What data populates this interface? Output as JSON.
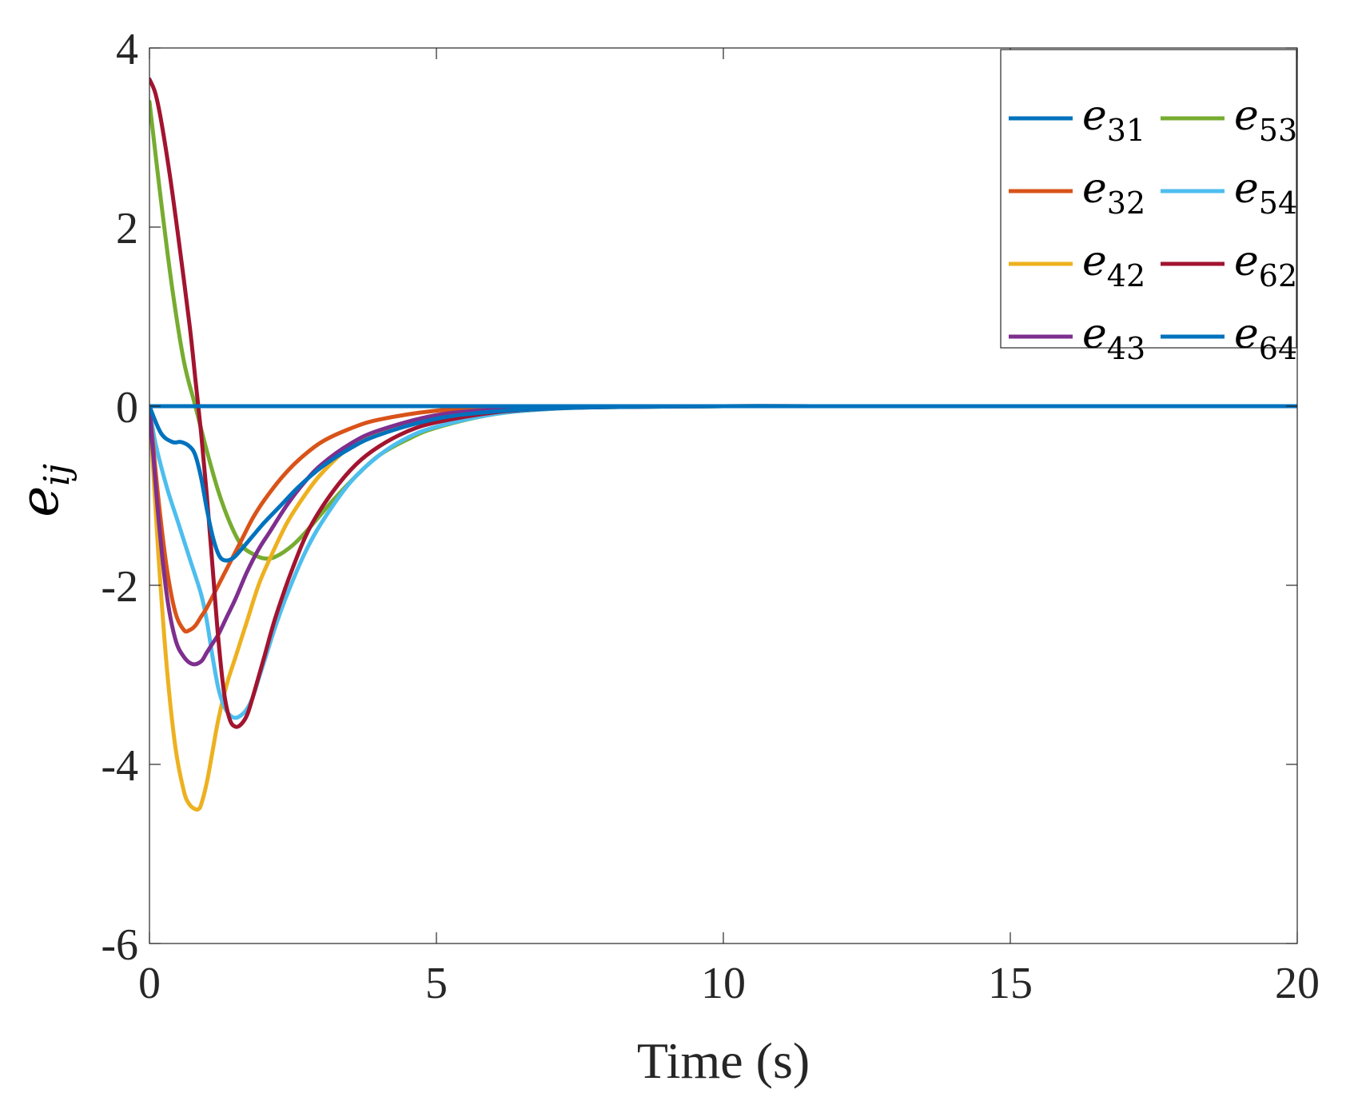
{
  "chart_data": {
    "type": "line",
    "title": "",
    "xlabel": "Time (s)",
    "ylabel": {
      "base": "e",
      "sub": "ij"
    },
    "xlim": [
      0,
      20
    ],
    "ylim": [
      -6,
      4
    ],
    "xticks": [
      0,
      5,
      10,
      15,
      20
    ],
    "xtick_labels": [
      "0",
      "5",
      "10",
      "15",
      "20"
    ],
    "yticks": [
      -6,
      -4,
      -2,
      0,
      2,
      4
    ],
    "ytick_labels": [
      "-6",
      "-4",
      "-2",
      "0",
      "2",
      "4"
    ],
    "grid": false,
    "legend_position": "top-right",
    "legend_columns": 2,
    "series": [
      {
        "name": "e31",
        "base": "e",
        "sub": "31",
        "color": "#0072BD",
        "x": [
          0,
          0.2,
          0.4,
          0.55,
          0.7,
          0.8,
          0.9,
          1.0,
          1.1,
          1.2,
          1.3,
          1.45,
          1.6,
          1.8,
          2.0,
          2.3,
          2.6,
          3.0,
          3.5,
          4.0,
          5.0,
          6.0,
          7.0,
          8.0,
          10.0,
          12.0,
          15.0,
          20.0
        ],
        "y": [
          0,
          -0.3,
          -0.4,
          -0.4,
          -0.45,
          -0.55,
          -0.8,
          -1.15,
          -1.45,
          -1.65,
          -1.72,
          -1.7,
          -1.6,
          -1.45,
          -1.3,
          -1.1,
          -0.9,
          -0.68,
          -0.47,
          -0.32,
          -0.14,
          -0.06,
          -0.025,
          -0.01,
          0,
          0,
          0,
          0
        ]
      },
      {
        "name": "e32",
        "base": "e",
        "sub": "32",
        "color": "#D95319",
        "x": [
          0,
          0.15,
          0.3,
          0.45,
          0.6,
          0.7,
          0.8,
          0.9,
          1.0,
          1.2,
          1.4,
          1.6,
          1.8,
          2.0,
          2.3,
          2.6,
          3.0,
          3.5,
          4.0,
          5.0,
          6.0,
          7.0,
          8.0,
          10.0,
          12.0,
          15.0,
          20.0
        ],
        "y": [
          0,
          -1.0,
          -1.8,
          -2.3,
          -2.5,
          -2.5,
          -2.45,
          -2.35,
          -2.25,
          -2.0,
          -1.75,
          -1.5,
          -1.25,
          -1.05,
          -0.8,
          -0.6,
          -0.4,
          -0.25,
          -0.15,
          -0.05,
          -0.02,
          -0.01,
          0,
          0,
          0,
          0,
          0
        ]
      },
      {
        "name": "e42",
        "base": "e",
        "sub": "42",
        "color": "#EDB120",
        "x": [
          0,
          0.15,
          0.3,
          0.45,
          0.6,
          0.7,
          0.8,
          0.85,
          0.9,
          1.0,
          1.1,
          1.2,
          1.35,
          1.5,
          1.7,
          1.9,
          2.1,
          2.4,
          2.7,
          3.0,
          3.5,
          4.0,
          5.0,
          6.0,
          7.0,
          8.0,
          10.0,
          12.0,
          15.0,
          20.0
        ],
        "y": [
          0,
          -1.6,
          -2.9,
          -3.8,
          -4.3,
          -4.45,
          -4.5,
          -4.5,
          -4.45,
          -4.2,
          -3.85,
          -3.5,
          -3.1,
          -2.8,
          -2.4,
          -2.0,
          -1.7,
          -1.3,
          -1.0,
          -0.75,
          -0.45,
          -0.28,
          -0.1,
          -0.04,
          -0.015,
          -0.005,
          0,
          0,
          0,
          0
        ]
      },
      {
        "name": "e43",
        "base": "e",
        "sub": "43",
        "color": "#7E2F8E",
        "x": [
          0,
          0.15,
          0.3,
          0.45,
          0.6,
          0.75,
          0.9,
          1.0,
          1.1,
          1.2,
          1.35,
          1.5,
          1.7,
          1.9,
          2.1,
          2.4,
          2.7,
          3.0,
          3.5,
          4.0,
          5.0,
          6.0,
          7.0,
          8.0,
          10.0,
          12.0,
          15.0,
          20.0
        ],
        "y": [
          0,
          -1.2,
          -2.1,
          -2.6,
          -2.8,
          -2.88,
          -2.85,
          -2.75,
          -2.65,
          -2.55,
          -2.35,
          -2.15,
          -1.85,
          -1.6,
          -1.4,
          -1.1,
          -0.85,
          -0.65,
          -0.42,
          -0.27,
          -0.1,
          -0.04,
          -0.015,
          -0.005,
          0,
          0,
          0,
          0
        ]
      },
      {
        "name": "e53",
        "base": "e",
        "sub": "53",
        "color": "#77AC30",
        "x": [
          0,
          0.2,
          0.4,
          0.6,
          0.8,
          1.0,
          1.2,
          1.4,
          1.6,
          1.8,
          2.0,
          2.2,
          2.5,
          2.8,
          3.2,
          3.6,
          4.0,
          4.5,
          5.0,
          6.0,
          7.0,
          8.0,
          10.0,
          12.0,
          15.0,
          20.0
        ],
        "y": [
          3.4,
          2.3,
          1.3,
          0.5,
          0.0,
          -0.5,
          -0.95,
          -1.3,
          -1.55,
          -1.65,
          -1.7,
          -1.68,
          -1.55,
          -1.35,
          -1.05,
          -0.78,
          -0.55,
          -0.37,
          -0.24,
          -0.09,
          -0.03,
          -0.01,
          0,
          0,
          0,
          0
        ]
      },
      {
        "name": "e54",
        "base": "e",
        "sub": "54",
        "color": "#4DBEEE",
        "x": [
          0,
          0.1,
          0.3,
          0.5,
          0.7,
          0.9,
          1.0,
          1.1,
          1.2,
          1.3,
          1.4,
          1.5,
          1.6,
          1.7,
          1.8,
          1.9,
          2.0,
          2.2,
          2.4,
          2.7,
          3.0,
          3.5,
          4.0,
          4.5,
          5.0,
          6.0,
          7.0,
          8.0,
          10.0,
          12.0,
          15.0,
          20.0
        ],
        "y": [
          0,
          -0.4,
          -0.9,
          -1.3,
          -1.7,
          -2.1,
          -2.4,
          -2.8,
          -3.15,
          -3.35,
          -3.45,
          -3.48,
          -3.45,
          -3.38,
          -3.25,
          -3.05,
          -2.85,
          -2.45,
          -2.1,
          -1.65,
          -1.3,
          -0.85,
          -0.55,
          -0.35,
          -0.23,
          -0.09,
          -0.03,
          -0.01,
          0,
          0,
          0,
          0
        ]
      },
      {
        "name": "e62",
        "base": "e",
        "sub": "62",
        "color": "#A2142F",
        "x": [
          0,
          0.1,
          0.2,
          0.35,
          0.5,
          0.7,
          0.8,
          0.9,
          1.0,
          1.1,
          1.2,
          1.3,
          1.4,
          1.5,
          1.6,
          1.7,
          1.8,
          2.0,
          2.2,
          2.5,
          2.8,
          3.2,
          3.6,
          4.0,
          4.5,
          5.0,
          6.0,
          7.0,
          8.0,
          10.0,
          12.0,
          15.0,
          20.0
        ],
        "y": [
          3.65,
          3.5,
          3.2,
          2.6,
          1.9,
          0.9,
          0.3,
          -0.3,
          -1.0,
          -1.8,
          -2.6,
          -3.2,
          -3.5,
          -3.58,
          -3.55,
          -3.45,
          -3.25,
          -2.8,
          -2.35,
          -1.8,
          -1.35,
          -0.95,
          -0.65,
          -0.45,
          -0.28,
          -0.18,
          -0.07,
          -0.025,
          -0.01,
          0,
          0,
          0,
          0
        ]
      },
      {
        "name": "e64",
        "base": "e",
        "sub": "64",
        "color": "#0072BD",
        "x": [
          0,
          10,
          20
        ],
        "y": [
          0,
          0,
          0
        ]
      }
    ]
  }
}
